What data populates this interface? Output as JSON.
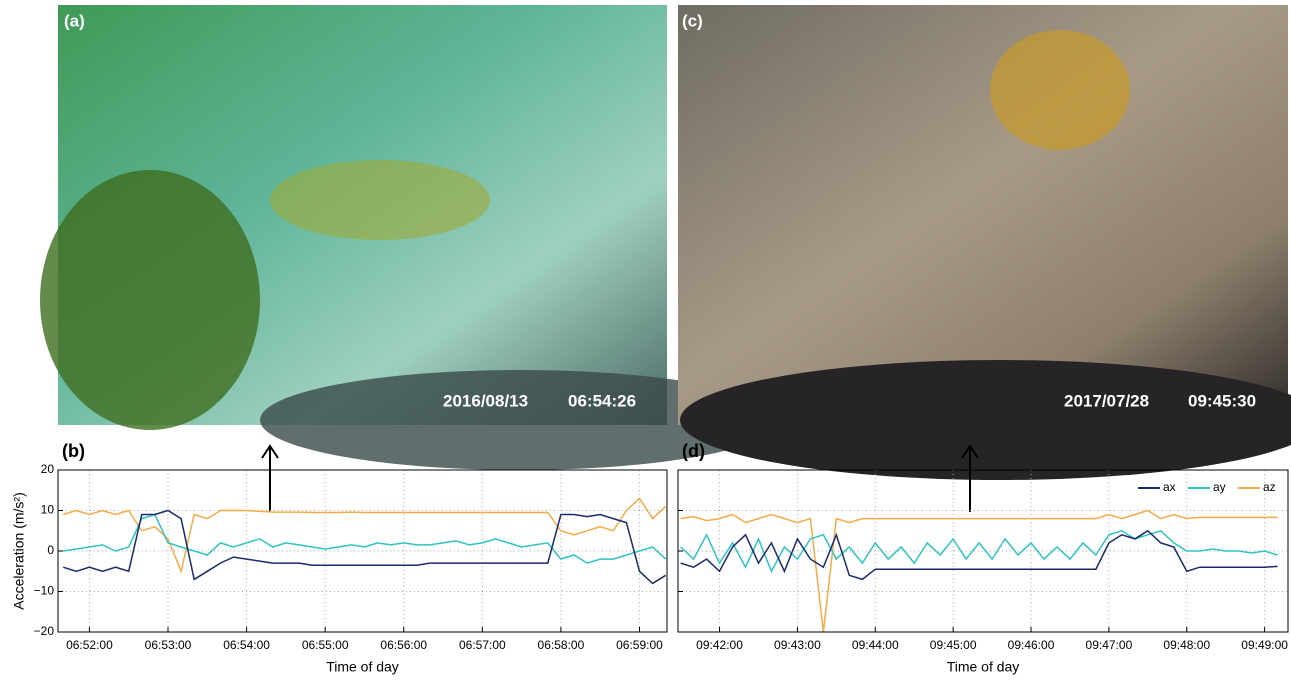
{
  "photos": [
    {
      "label": "(a)",
      "date": "2016/08/13",
      "time": "06:54:26"
    },
    {
      "label": "(c)",
      "date": "2017/07/28",
      "time": "09:45:30"
    }
  ],
  "chart_data": [
    {
      "type": "line",
      "panel_label": "(b)",
      "y_label": "Acceleration (m/s²)",
      "x_label": "Time of day",
      "xlim": [
        "06:51:36",
        "06:59:21"
      ],
      "xticks": [
        "06:52:00",
        "06:53:00",
        "06:54:00",
        "06:55:00",
        "06:56:00",
        "06:57:00",
        "06:58:00",
        "06:59:00"
      ],
      "ylim": [
        -20,
        20
      ],
      "yticks": [
        {
          "value": -20,
          "label": "−20"
        },
        {
          "value": -10,
          "label": "−10"
        },
        0,
        10,
        20
      ],
      "ytick_labels": true,
      "grid": true,
      "x": [
        "06:51:40",
        "06:51:50",
        "06:52:00",
        "06:52:10",
        "06:52:20",
        "06:52:30",
        "06:52:40",
        "06:52:50",
        "06:53:00",
        "06:53:10",
        "06:53:20",
        "06:53:30",
        "06:53:40",
        "06:53:50",
        "06:54:00",
        "06:54:10",
        "06:54:20",
        "06:54:30",
        "06:54:40",
        "06:54:50",
        "06:55:00",
        "06:55:10",
        "06:55:20",
        "06:55:30",
        "06:55:40",
        "06:55:50",
        "06:56:00",
        "06:56:10",
        "06:56:20",
        "06:56:30",
        "06:56:40",
        "06:56:50",
        "06:57:00",
        "06:57:10",
        "06:57:20",
        "06:57:30",
        "06:57:40",
        "06:57:50",
        "06:58:00",
        "06:58:10",
        "06:58:20",
        "06:58:30",
        "06:58:40",
        "06:58:50",
        "06:59:00",
        "06:59:10",
        "06:59:20"
      ],
      "series": [
        {
          "color": "#f5a947",
          "values": [
            9,
            10,
            9,
            10,
            9,
            10,
            5,
            6,
            3,
            -5,
            9,
            8,
            10,
            10,
            10,
            9.8,
            9.6,
            9.6,
            9.6,
            9.5,
            9.5,
            9.5,
            9.6,
            9.5,
            9.5,
            9.5,
            9.5,
            9.5,
            9.5,
            9.5,
            9.5,
            9.5,
            9.5,
            9.5,
            9.5,
            9.5,
            9.5,
            9.5,
            5,
            4,
            5,
            6,
            5,
            10,
            13,
            8,
            11
          ]
        },
        {
          "color": "#2ec4c4",
          "values": [
            0,
            0.5,
            1,
            1.5,
            0,
            1,
            8,
            9,
            2,
            1,
            0,
            -1,
            2,
            1,
            2,
            3,
            1,
            2,
            1.5,
            1,
            0.5,
            1,
            1.5,
            1,
            2,
            1.5,
            2,
            1.5,
            1.5,
            2,
            2.5,
            1.5,
            2,
            3,
            2,
            1,
            1.5,
            2,
            -2,
            -1,
            -3,
            -2,
            -2,
            -1,
            0,
            1,
            -2
          ]
        },
        {
          "color": "#1a2a6c",
          "values": [
            -4,
            -5,
            -4,
            -5,
            -4,
            -5,
            9,
            9,
            10,
            8,
            -7,
            -5,
            -3,
            -1.5,
            -2,
            -2.5,
            -3,
            -3,
            -3,
            -3.5,
            -3.5,
            -3.5,
            -3.5,
            -3.5,
            -3.5,
            -3.5,
            -3.5,
            -3.5,
            -3,
            -3,
            -3,
            -3,
            -3,
            -3,
            -3,
            -3,
            -3,
            -3,
            9,
            9,
            8.5,
            9,
            8,
            7,
            -5,
            -8,
            -6
          ]
        }
      ]
    },
    {
      "type": "line",
      "panel_label": "(d)",
      "x_label": "Time of day",
      "legend": "upper right",
      "xlim": [
        "09:41:28",
        "09:49:18"
      ],
      "xticks": [
        "09:42:00",
        "09:43:00",
        "09:44:00",
        "09:45:00",
        "09:46:00",
        "09:47:00",
        "09:48:00",
        "09:49:00"
      ],
      "ylim": [
        -20,
        20
      ],
      "yticks": [
        -20,
        -10,
        0,
        10,
        20
      ],
      "ytick_labels": false,
      "grid": true,
      "x": [
        "09:41:30",
        "09:41:40",
        "09:41:50",
        "09:42:00",
        "09:42:10",
        "09:42:20",
        "09:42:30",
        "09:42:40",
        "09:42:50",
        "09:43:00",
        "09:43:10",
        "09:43:20",
        "09:43:30",
        "09:43:40",
        "09:43:50",
        "09:44:00",
        "09:44:10",
        "09:44:20",
        "09:44:30",
        "09:44:40",
        "09:44:50",
        "09:45:00",
        "09:45:10",
        "09:45:20",
        "09:45:30",
        "09:45:40",
        "09:45:50",
        "09:46:00",
        "09:46:10",
        "09:46:20",
        "09:46:30",
        "09:46:40",
        "09:46:50",
        "09:47:00",
        "09:47:10",
        "09:47:20",
        "09:47:30",
        "09:47:40",
        "09:47:50",
        "09:48:00",
        "09:48:10",
        "09:48:20",
        "09:48:30",
        "09:48:40",
        "09:48:50",
        "09:49:00",
        "09:49:10"
      ],
      "series": [
        {
          "name": "az",
          "color": "#f5a947",
          "values": [
            8,
            8.5,
            7.5,
            8,
            9,
            7,
            8,
            9,
            8,
            7,
            8,
            -20,
            8,
            7,
            8,
            8,
            8,
            8,
            8,
            8,
            8,
            8,
            8,
            8,
            8,
            8,
            8,
            8,
            8,
            8,
            8,
            8,
            8,
            9,
            8,
            9,
            10,
            8,
            9,
            8,
            8.3,
            8.3,
            8.3,
            8.3,
            8.3,
            8.3,
            8.3
          ]
        },
        {
          "name": "ay",
          "color": "#2ec4c4",
          "values": [
            1,
            -2,
            4,
            -3,
            2,
            -4,
            3,
            -5,
            1,
            -2,
            3,
            4,
            -2,
            1,
            -3,
            2,
            -2,
            1,
            -3,
            2,
            -1,
            3,
            -2,
            2,
            -2,
            3,
            -1,
            2,
            -2,
            1,
            -2,
            2,
            -1,
            4,
            5,
            3,
            4,
            5,
            2,
            0,
            0,
            0.5,
            0,
            0,
            -0.5,
            0,
            -1
          ]
        },
        {
          "name": "ax",
          "color": "#1a2a6c",
          "values": [
            -3,
            -4,
            -2,
            -5,
            1,
            4,
            -3,
            2,
            -5,
            3,
            -2,
            -4,
            4,
            -6,
            -7,
            -4.5,
            -4.5,
            -4.5,
            -4.5,
            -4.5,
            -4.5,
            -4.5,
            -4.5,
            -4.5,
            -4.5,
            -4.5,
            -4.5,
            -4.5,
            -4.5,
            -4.5,
            -4.5,
            -4.5,
            -4.5,
            2,
            4,
            3,
            5,
            2,
            1,
            -5,
            -4,
            -4,
            -4,
            -4,
            -4,
            -4,
            -3.8
          ]
        }
      ]
    }
  ]
}
